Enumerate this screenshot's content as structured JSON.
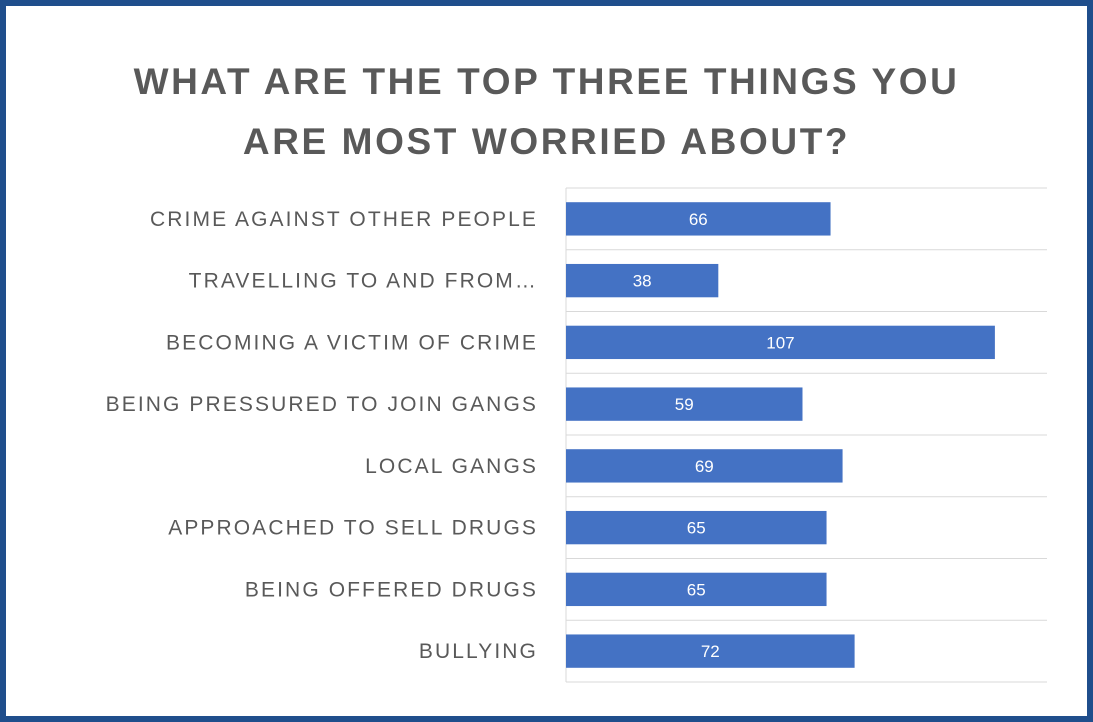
{
  "chart_data": {
    "type": "bar",
    "orientation": "horizontal",
    "title": "WHAT ARE THE TOP THREE THINGS YOU ARE MOST WORRIED ABOUT?",
    "title_lines": [
      "WHAT ARE THE TOP THREE THINGS YOU",
      "ARE MOST WORRIED ABOUT?"
    ],
    "categories": [
      "CRIME AGAINST OTHER PEOPLE",
      "TRAVELLING TO AND FROM…",
      "BECOMING A VICTIM OF CRIME",
      "BEING PRESSURED TO JOIN GANGS",
      "LOCAL GANGS",
      "APPROACHED TO SELL DRUGS",
      "BEING OFFERED DRUGS",
      "BULLYING"
    ],
    "values": [
      66,
      38,
      107,
      59,
      69,
      65,
      65,
      72
    ],
    "xlim": [
      0,
      120
    ],
    "xaxis_visible": false,
    "data_labels": true,
    "grid": "horizontal separators",
    "legend": "none",
    "colors": {
      "bar": "#4472c4",
      "grid": "#d9d9d9",
      "frame": "#1f4e8c",
      "text": "#595959",
      "data_label": "#ffffff"
    }
  }
}
